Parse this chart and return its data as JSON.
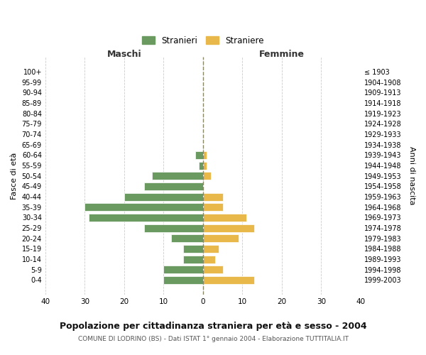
{
  "age_groups": [
    "100+",
    "95-99",
    "90-94",
    "85-89",
    "80-84",
    "75-79",
    "70-74",
    "65-69",
    "60-64",
    "55-59",
    "50-54",
    "45-49",
    "40-44",
    "35-39",
    "30-34",
    "25-29",
    "20-24",
    "15-19",
    "10-14",
    "5-9",
    "0-4"
  ],
  "birth_years": [
    "≤ 1903",
    "1904-1908",
    "1909-1913",
    "1914-1918",
    "1919-1923",
    "1924-1928",
    "1929-1933",
    "1934-1938",
    "1939-1943",
    "1944-1948",
    "1949-1953",
    "1954-1958",
    "1959-1963",
    "1964-1968",
    "1969-1973",
    "1974-1978",
    "1979-1983",
    "1984-1988",
    "1989-1993",
    "1994-1998",
    "1999-2003"
  ],
  "males": [
    0,
    0,
    0,
    0,
    0,
    0,
    0,
    0,
    2,
    1,
    13,
    15,
    20,
    30,
    29,
    15,
    8,
    5,
    5,
    10,
    10
  ],
  "females": [
    0,
    0,
    0,
    0,
    0,
    0,
    0,
    0,
    1,
    1,
    2,
    0,
    5,
    5,
    11,
    13,
    9,
    4,
    3,
    5,
    13
  ],
  "male_color": "#6a9a5f",
  "female_color": "#e8b84b",
  "grid_color": "#cccccc",
  "dashed_line_color": "#888866",
  "title": "Popolazione per cittadinanza straniera per età e sesso - 2004",
  "subtitle": "COMUNE DI LODRINO (BS) - Dati ISTAT 1° gennaio 2004 - Elaborazione TUTTITALIA.IT",
  "xlabel_left": "Maschi",
  "xlabel_right": "Femmine",
  "ylabel_left": "Fasce di età",
  "ylabel_right": "Anni di nascita",
  "legend_male": "Stranieri",
  "legend_female": "Straniere",
  "xlim": 40,
  "bar_height": 0.75
}
